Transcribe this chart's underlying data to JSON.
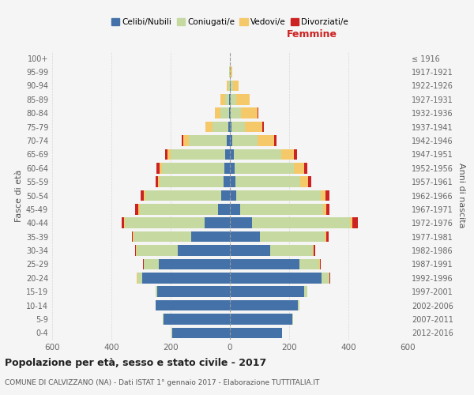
{
  "age_groups": [
    "0-4",
    "5-9",
    "10-14",
    "15-19",
    "20-24",
    "25-29",
    "30-34",
    "35-39",
    "40-44",
    "45-49",
    "50-54",
    "55-59",
    "60-64",
    "65-69",
    "70-74",
    "75-79",
    "80-84",
    "85-89",
    "90-94",
    "95-99",
    "100+"
  ],
  "birth_years": [
    "2012-2016",
    "2007-2011",
    "2002-2006",
    "1997-2001",
    "1992-1996",
    "1987-1991",
    "1982-1986",
    "1977-1981",
    "1972-1976",
    "1967-1971",
    "1962-1966",
    "1957-1961",
    "1952-1956",
    "1947-1951",
    "1942-1946",
    "1937-1941",
    "1932-1936",
    "1927-1931",
    "1922-1926",
    "1917-1921",
    "≤ 1916"
  ],
  "male": {
    "celibi": [
      195,
      225,
      250,
      245,
      295,
      240,
      175,
      130,
      85,
      40,
      30,
      22,
      20,
      15,
      10,
      5,
      3,
      2,
      0,
      0,
      0
    ],
    "coniugati": [
      2,
      2,
      2,
      5,
      18,
      50,
      140,
      195,
      270,
      265,
      255,
      215,
      210,
      185,
      130,
      55,
      30,
      15,
      5,
      2,
      0
    ],
    "vedovi": [
      0,
      0,
      0,
      0,
      2,
      2,
      2,
      2,
      3,
      5,
      5,
      5,
      8,
      12,
      18,
      22,
      18,
      15,
      5,
      2,
      0
    ],
    "divorziati": [
      0,
      0,
      0,
      0,
      0,
      2,
      3,
      5,
      8,
      10,
      12,
      10,
      10,
      8,
      5,
      0,
      0,
      0,
      0,
      0,
      0
    ]
  },
  "female": {
    "nubili": [
      175,
      210,
      230,
      250,
      310,
      235,
      135,
      100,
      75,
      35,
      22,
      18,
      15,
      12,
      8,
      5,
      3,
      2,
      2,
      0,
      0
    ],
    "coniugate": [
      2,
      3,
      5,
      10,
      25,
      65,
      145,
      220,
      330,
      280,
      285,
      220,
      200,
      160,
      85,
      45,
      35,
      20,
      8,
      3,
      0
    ],
    "vedove": [
      0,
      0,
      0,
      0,
      2,
      3,
      3,
      5,
      8,
      10,
      15,
      25,
      35,
      45,
      55,
      60,
      55,
      45,
      20,
      5,
      0
    ],
    "divorziate": [
      0,
      0,
      0,
      0,
      2,
      3,
      5,
      8,
      18,
      12,
      15,
      12,
      12,
      10,
      8,
      5,
      2,
      0,
      0,
      0,
      0
    ]
  },
  "colors": {
    "celibi": "#4472a8",
    "coniugati": "#c5d9a0",
    "vedovi": "#f5c96a",
    "divorziati": "#cc2222"
  },
  "title": "Popolazione per età, sesso e stato civile - 2017",
  "subtitle": "COMUNE DI CALVIZZANO (NA) - Dati ISTAT 1° gennaio 2017 - Elaborazione TUTTITALIA.IT",
  "xlabel_right": "Femmine",
  "ylabel_left": "Fasce di età",
  "ylabel_right": "Anni di nascita",
  "xlim": 600,
  "legend_labels": [
    "Celibi/Nubili",
    "Coniugati/e",
    "Vedovi/e",
    "Divorziati/e"
  ],
  "background_color": "#f5f5f5"
}
